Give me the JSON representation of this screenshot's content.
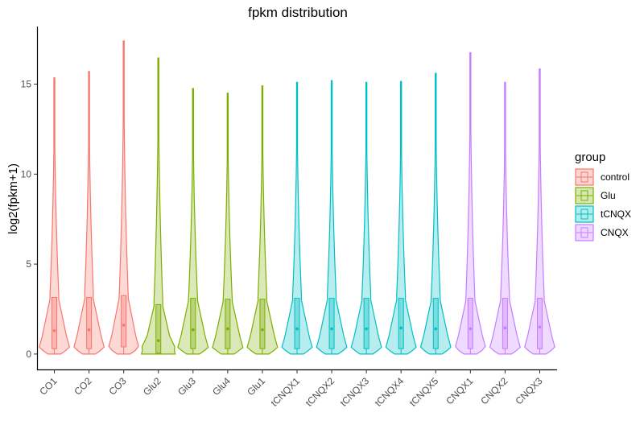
{
  "chart_data": {
    "type": "violin",
    "title": "fpkm distribution",
    "xlabel": "",
    "ylabel": "log2(fpkm+1)",
    "ylim": [
      -0.9,
      18.2
    ],
    "yticks": [
      0,
      5,
      10,
      15
    ],
    "grid": false,
    "legend": {
      "title": "group",
      "position": "right",
      "entries": [
        {
          "name": "control",
          "color": "#f8766d"
        },
        {
          "name": "Glu",
          "color": "#7cae00"
        },
        {
          "name": "tCNQX",
          "color": "#00bfc4"
        },
        {
          "name": "CNQX",
          "color": "#c77cff"
        }
      ]
    },
    "categories": [
      "CO1",
      "CO2",
      "CO3",
      "Glu2",
      "Glu3",
      "Glu4",
      "Glu1",
      "tCNQX1",
      "tCNQX2",
      "tCNQX3",
      "tCNQX4",
      "tCNQX5",
      "CNQX1",
      "CNQX2",
      "CNQX3"
    ],
    "samples": [
      {
        "name": "CO1",
        "group": "control",
        "max": 15.35,
        "q1": 0.3,
        "median": 1.3,
        "q3": 3.15
      },
      {
        "name": "CO2",
        "group": "control",
        "max": 15.7,
        "q1": 0.3,
        "median": 1.35,
        "q3": 3.15
      },
      {
        "name": "CO3",
        "group": "control",
        "max": 17.4,
        "q1": 0.4,
        "median": 1.6,
        "q3": 3.25
      },
      {
        "name": "Glu2",
        "group": "Glu",
        "max": 16.45,
        "q1": 0.05,
        "median": 0.75,
        "q3": 2.75
      },
      {
        "name": "Glu3",
        "group": "Glu",
        "max": 14.75,
        "q1": 0.3,
        "median": 1.35,
        "q3": 3.1
      },
      {
        "name": "Glu4",
        "group": "Glu",
        "max": 14.5,
        "q1": 0.3,
        "median": 1.4,
        "q3": 3.05
      },
      {
        "name": "Glu1",
        "group": "Glu",
        "max": 14.9,
        "q1": 0.3,
        "median": 1.35,
        "q3": 3.05
      },
      {
        "name": "tCNQX1",
        "group": "tCNQX",
        "max": 15.1,
        "q1": 0.3,
        "median": 1.4,
        "q3": 3.1
      },
      {
        "name": "tCNQX2",
        "group": "tCNQX",
        "max": 15.2,
        "q1": 0.3,
        "median": 1.4,
        "q3": 3.1
      },
      {
        "name": "tCNQX3",
        "group": "tCNQX",
        "max": 15.1,
        "q1": 0.3,
        "median": 1.4,
        "q3": 3.1
      },
      {
        "name": "tCNQX4",
        "group": "tCNQX",
        "max": 15.15,
        "q1": 0.3,
        "median": 1.45,
        "q3": 3.1
      },
      {
        "name": "tCNQX5",
        "group": "tCNQX",
        "max": 15.6,
        "q1": 0.3,
        "median": 1.4,
        "q3": 3.1
      },
      {
        "name": "CNQX1",
        "group": "CNQX",
        "max": 16.75,
        "q1": 0.3,
        "median": 1.4,
        "q3": 3.1
      },
      {
        "name": "CNQX2",
        "group": "CNQX",
        "max": 15.1,
        "q1": 0.3,
        "median": 1.45,
        "q3": 3.1
      },
      {
        "name": "CNQX3",
        "group": "CNQX",
        "max": 15.85,
        "q1": 0.3,
        "median": 1.5,
        "q3": 3.1
      }
    ]
  }
}
